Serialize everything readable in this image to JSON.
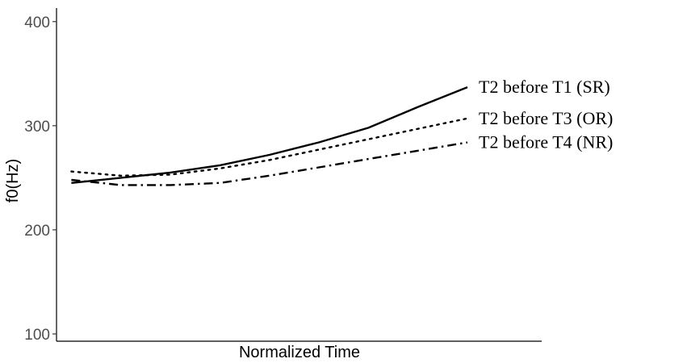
{
  "chart_data": {
    "type": "line",
    "title": "",
    "xlabel": "Normalized Time",
    "ylabel": "f0(Hz)",
    "ylim": [
      93,
      413
    ],
    "xlim": [
      0.7,
      10.5
    ],
    "yticks": [
      100,
      200,
      300,
      400
    ],
    "grid": false,
    "legend": "direct labels at right end of lines",
    "x": [
      1,
      2,
      3,
      4,
      5,
      6,
      7,
      8,
      9,
      10
    ],
    "series": [
      {
        "name": "T2 before T1 (SR)",
        "dash": "solid",
        "values": [
          245,
          250,
          255,
          262,
          272,
          284,
          298,
          318,
          337,
          null
        ]
      },
      {
        "name": "T2 before T3 (OR)",
        "dash": "dotted",
        "values": [
          256,
          252,
          253,
          259,
          267,
          277,
          287,
          297,
          307,
          null
        ]
      },
      {
        "name": "T2 before T4 (NR)",
        "dash": "dotdash",
        "values": [
          248,
          243,
          243,
          245,
          252,
          260,
          268,
          276,
          284,
          null
        ]
      }
    ]
  }
}
